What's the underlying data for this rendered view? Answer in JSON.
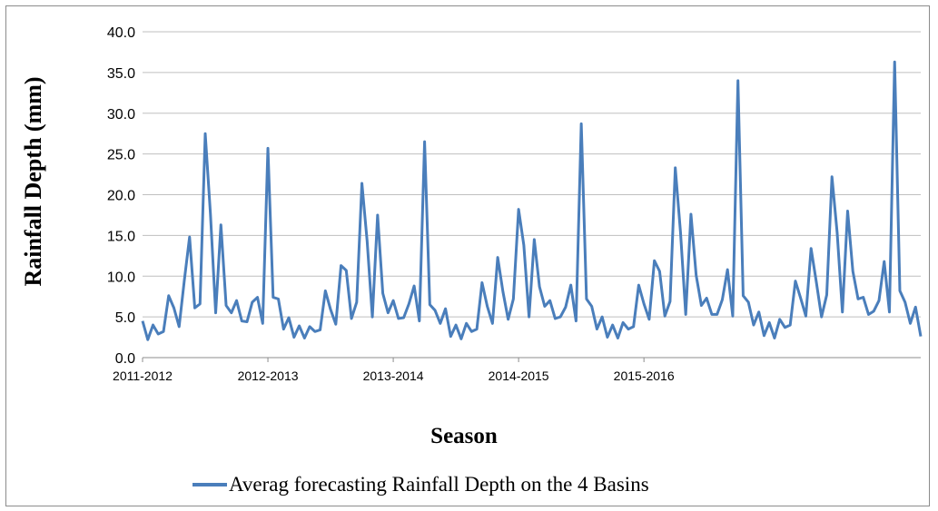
{
  "chart_data": {
    "type": "line",
    "xlabel": "Season",
    "ylabel": "Rainfall Depth (mm)",
    "ylim": [
      0,
      40
    ],
    "yticks": [
      "0.0",
      "5.0",
      "10.0",
      "15.0",
      "20.0",
      "25.0",
      "30.0",
      "35.0",
      "40.0"
    ],
    "xtick_labels": [
      "2011-2012",
      "2012-2013",
      "2013-2014",
      "2014-2015",
      "2015-2016"
    ],
    "grid": true,
    "legend_position": "bottom",
    "series": [
      {
        "name": "Averag forecasting Rainfall Depth on the 4  Basins",
        "color": "#4a7ebb",
        "values": [
          4.5,
          2.2,
          4.0,
          2.9,
          3.2,
          7.6,
          6.1,
          3.8,
          9.5,
          14.8,
          6.1,
          6.6,
          27.5,
          17.6,
          5.5,
          16.3,
          6.4,
          5.5,
          7.0,
          4.5,
          4.4,
          6.8,
          7.4,
          4.2,
          25.7,
          7.4,
          7.2,
          3.5,
          4.9,
          2.5,
          3.9,
          2.4,
          3.8,
          3.2,
          3.4,
          8.2,
          5.9,
          4.1,
          11.3,
          10.7,
          4.8,
          6.8,
          21.4,
          14.3,
          5.0,
          17.5,
          7.9,
          5.5,
          7.0,
          4.8,
          4.9,
          6.6,
          8.8,
          4.5,
          26.5,
          6.5,
          5.8,
          4.2,
          6.0,
          2.6,
          4.0,
          2.3,
          4.2,
          3.2,
          3.5,
          9.2,
          6.3,
          4.2,
          12.3,
          8.1,
          4.7,
          7.2,
          18.2,
          13.8,
          5.0,
          14.5,
          8.7,
          6.3,
          7.0,
          4.8,
          5.0,
          6.2,
          8.9,
          4.5,
          28.7,
          7.2,
          6.3,
          3.5,
          5.0,
          2.5,
          4.0,
          2.4,
          4.3,
          3.5,
          3.8,
          8.9,
          6.6,
          4.7,
          11.9,
          10.6,
          5.1,
          6.9,
          23.3,
          15.4,
          5.3,
          17.6,
          10.1,
          6.4,
          7.3,
          5.3,
          5.3,
          7.1,
          10.8,
          5.1,
          34.0,
          7.6,
          6.8,
          4.0,
          5.6,
          2.7,
          4.3,
          2.4,
          4.7,
          3.7,
          4.0,
          9.4,
          7.3,
          5.1,
          13.4,
          9.3,
          5.0,
          7.7,
          22.2,
          15.3,
          5.6,
          18.0,
          10.6,
          7.2,
          7.4,
          5.3,
          5.7,
          7.0,
          11.8,
          5.6,
          36.3,
          8.2,
          6.8,
          4.2,
          6.2,
          2.6
        ]
      }
    ]
  }
}
